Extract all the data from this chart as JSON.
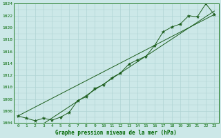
{
  "xlabel": "Graphe pression niveau de la mer (hPa)",
  "bg_color": "#cce8e8",
  "grid_color": "#b0d4d4",
  "line_color": "#1a5c1a",
  "marker_color": "#1a5c1a",
  "hours": [
    0,
    1,
    2,
    3,
    4,
    5,
    6,
    7,
    8,
    9,
    10,
    11,
    12,
    13,
    14,
    15,
    16,
    17,
    18,
    19,
    20,
    21,
    22,
    23
  ],
  "pressure": [
    1005.2,
    1004.8,
    1004.4,
    1004.8,
    1004.5,
    1005.0,
    1005.8,
    1007.8,
    1008.4,
    1009.8,
    1010.4,
    1011.6,
    1012.4,
    1013.9,
    1014.6,
    1015.2,
    1017.0,
    1019.3,
    1020.1,
    1020.6,
    1022.0,
    1021.8,
    1024.0,
    1022.2
  ],
  "ylim_min": 1004,
  "ylim_max": 1024,
  "ytick_step": 2,
  "facecolor": "#cce8e8",
  "spine_color": "#006600",
  "tick_color": "#006600",
  "tick_label_color": "#006600",
  "xlabel_color": "#006600"
}
